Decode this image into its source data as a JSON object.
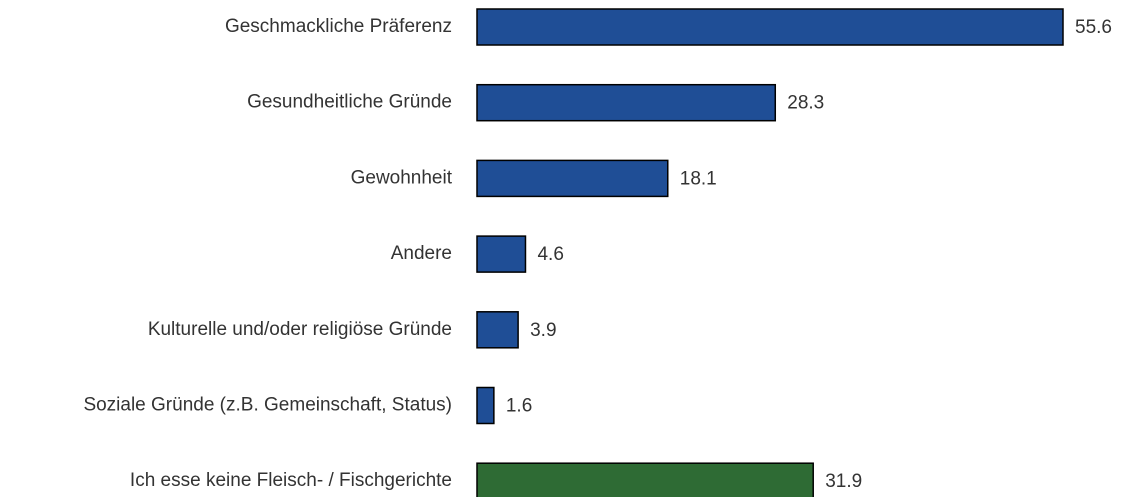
{
  "chart_data": {
    "type": "barh",
    "categories": [
      "Geschmackliche Präferenz",
      "Gesundheitliche Gründe",
      "Gewohnheit",
      "Andere",
      "Kulturelle und/oder religiöse Gründe",
      "Soziale Gründe (z.B. Gemeinschaft, Status)",
      "Ich esse keine Fleisch- / Fischgerichte"
    ],
    "values": [
      55.6,
      28.3,
      18.1,
      4.6,
      3.9,
      1.6,
      31.9
    ],
    "colors": [
      "#1f4e96",
      "#1f4e96",
      "#1f4e96",
      "#1f4e96",
      "#1f4e96",
      "#1f4e96",
      "#2e6b34"
    ]
  }
}
